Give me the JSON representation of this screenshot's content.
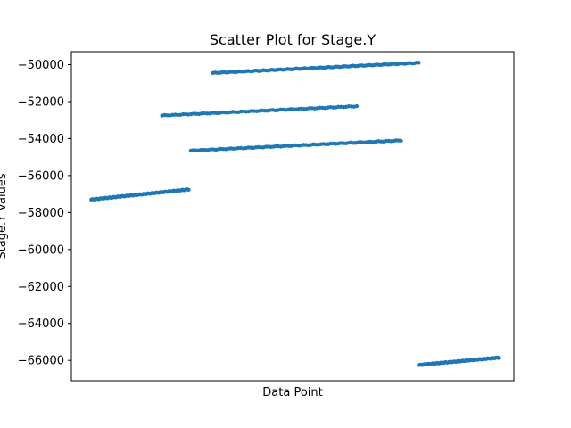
{
  "chart_data": {
    "type": "scatter",
    "title": "Scatter Plot for Stage.Y",
    "xlabel": "Data Point",
    "ylabel": "Stage.Y Values",
    "xticks_visible": false,
    "ylim": [
      -67100,
      -49300
    ],
    "xlim": [
      0,
      100
    ],
    "yticks": [
      -50000,
      -52000,
      -54000,
      -56000,
      -58000,
      -60000,
      -62000,
      -64000,
      -66000
    ],
    "ytick_labels": [
      "−50000",
      "−52000",
      "−54000",
      "−56000",
      "−58000",
      "−60000",
      "−62000",
      "−64000",
      "−66000"
    ],
    "grid": false,
    "marker_color": "#1f77b4",
    "series": [
      {
        "segments": [
          {
            "x_start": 4.5,
            "x_end": 26.5,
            "y_start": -57300,
            "y_end": -56750,
            "count": 85
          },
          {
            "x_start": 20.5,
            "x_end": 64.5,
            "y_start": -52750,
            "y_end": -52250,
            "count": 75
          },
          {
            "x_start": 27.0,
            "x_end": 74.5,
            "y_start": -54650,
            "y_end": -54100,
            "count": 85
          },
          {
            "x_start": 32.0,
            "x_end": 78.5,
            "y_start": -50450,
            "y_end": -49900,
            "count": 95
          },
          {
            "x_start": 78.5,
            "x_end": 96.5,
            "y_start": -66250,
            "y_end": -65850,
            "count": 70
          }
        ]
      }
    ]
  }
}
